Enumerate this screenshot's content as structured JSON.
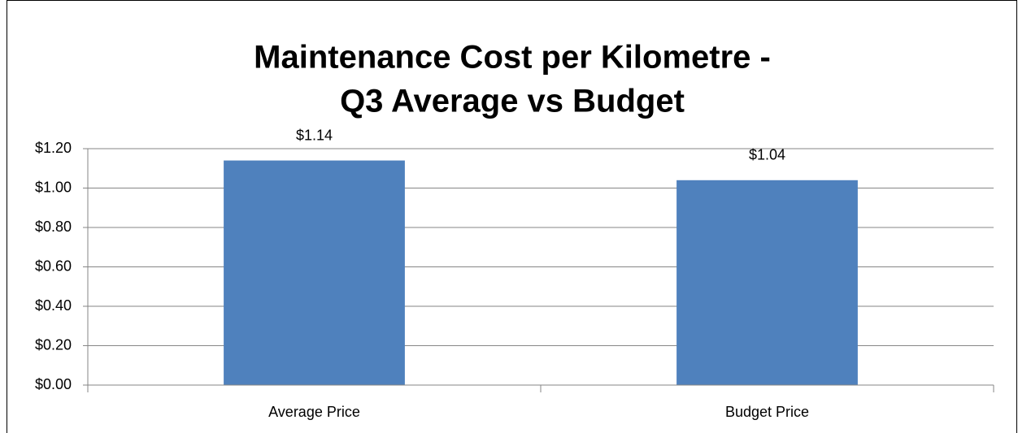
{
  "chart_data": {
    "type": "bar",
    "title": [
      "Maintenance Cost per Kilometre -",
      "Q3 Average vs Budget"
    ],
    "categories": [
      "Average Price",
      "Budget Price"
    ],
    "values": [
      1.14,
      1.04
    ],
    "value_labels": [
      "$1.14",
      "$1.04"
    ],
    "color": "#4f81bd",
    "ylim": [
      0,
      1.2
    ],
    "yticks": [
      {
        "value": 0,
        "label": "$0.00"
      },
      {
        "value": 0.2,
        "label": "$0.20"
      },
      {
        "value": 0.4,
        "label": "$0.40"
      },
      {
        "value": 0.6,
        "label": "$0.60"
      },
      {
        "value": 0.8,
        "label": "$0.80"
      },
      {
        "value": 1.0,
        "label": "$1.00"
      },
      {
        "value": 1.2,
        "label": "$1.20"
      }
    ],
    "grid": true
  }
}
